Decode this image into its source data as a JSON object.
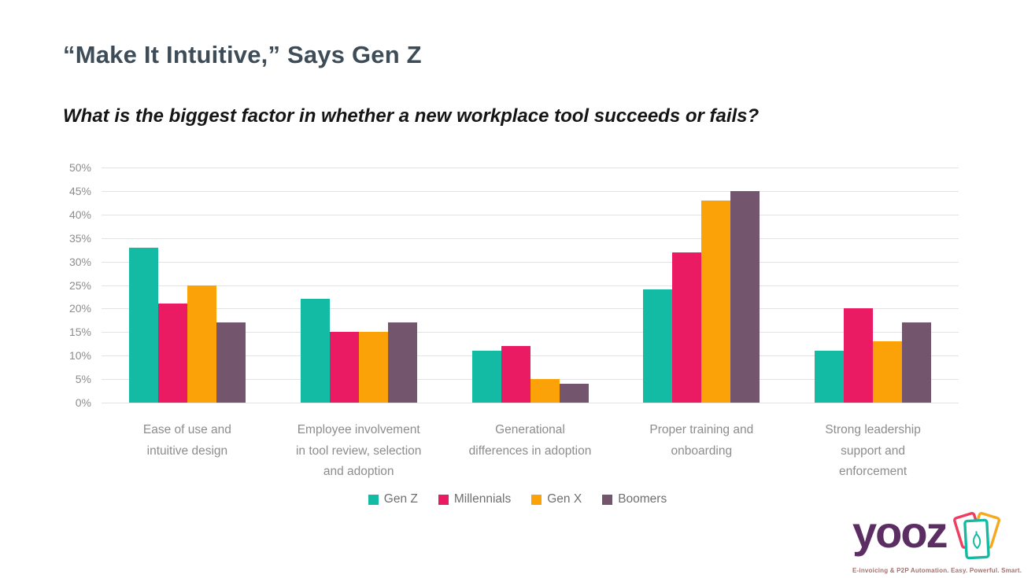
{
  "header": {
    "title": "“Make It Intuitive,” Says Gen Z",
    "subtitle": "What is the biggest factor in whether a new workplace tool succeeds or fails?"
  },
  "chart_data": {
    "type": "bar",
    "title": "“Make It Intuitive,” Says Gen Z",
    "subtitle": "What is the biggest factor in whether a new workplace tool succeeds or fails?",
    "categories": [
      "Ease of use and intuitive design",
      "Employee involvement in tool review, selection and adoption",
      "Generational differences in adoption",
      "Proper training and onboarding",
      "Strong leadership support and enforcement"
    ],
    "category_label_lines": [
      [
        "Ease of use and",
        "intuitive design"
      ],
      [
        "Employee involvement",
        "in tool review, selection",
        "and adoption"
      ],
      [
        "Generational",
        "differences in adoption"
      ],
      [
        "Proper training and",
        "onboarding"
      ],
      [
        "Strong leadership",
        "support and",
        "enforcement"
      ]
    ],
    "series": [
      {
        "name": "Gen Z",
        "color": "#13bba4",
        "values": [
          33,
          22,
          11,
          24,
          11
        ]
      },
      {
        "name": "Millennials",
        "color": "#ea1b63",
        "values": [
          21,
          15,
          12,
          32,
          20
        ]
      },
      {
        "name": "Gen X",
        "color": "#fba208",
        "values": [
          25,
          15,
          5,
          43,
          13
        ]
      },
      {
        "name": "Boomers",
        "color": "#73556d",
        "values": [
          17,
          17,
          4,
          45,
          17
        ]
      }
    ],
    "ylim": [
      0,
      50
    ],
    "ytick_step": 5,
    "ytick_suffix": "%",
    "ytick_labels": [
      "0%",
      "5%",
      "10%",
      "15%",
      "20%",
      "25%",
      "30%",
      "35%",
      "40%",
      "45%",
      "50%"
    ],
    "grid": true,
    "legend_position": "bottom",
    "colors": {
      "grid": "#e3e3e3",
      "axis_text": "#8c8c8c",
      "legend_text": "#6f6f6f",
      "title": "#3d4c57"
    }
  },
  "logo": {
    "brand": "yooz",
    "tagline": "E-invoicing & P2P Automation. Easy. Powerful. Smart.",
    "brand_color": "#5c2d63",
    "card_left_color": "#ee3d5e",
    "card_right_color": "#f6a81f",
    "card_front_color": "#16b9a1"
  }
}
